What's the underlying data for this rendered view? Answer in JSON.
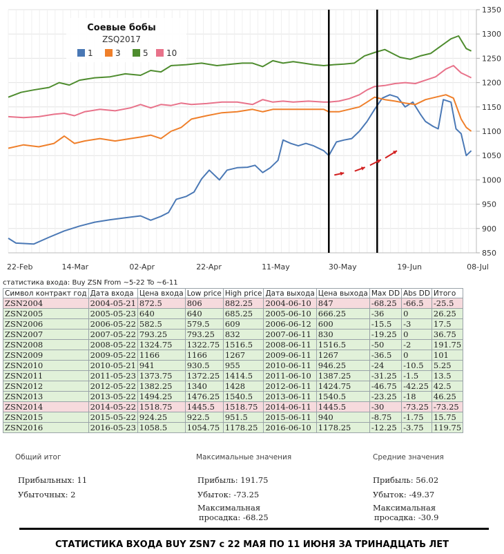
{
  "chart_data": {
    "type": "line",
    "title": "Соевые бобы",
    "subtitle": "ZSQ2017",
    "ylim": [
      850,
      1350
    ],
    "yticks": [
      850,
      900,
      950,
      1000,
      1050,
      1100,
      1150,
      1200,
      1250,
      1300,
      1350
    ],
    "xticks": [
      "22-Feb",
      "14-Mar",
      "02-Apr",
      "22-Apr",
      "11-May",
      "30-May",
      "19-Jun",
      "08-Jul"
    ],
    "legend_position": "top-left",
    "grid": true,
    "series": [
      {
        "name": "1",
        "color": "#4a78b5",
        "values": [
          [
            0,
            880
          ],
          [
            3,
            870
          ],
          [
            10,
            868
          ],
          [
            16,
            882
          ],
          [
            22,
            895
          ],
          [
            28,
            905
          ],
          [
            34,
            913
          ],
          [
            40,
            918
          ],
          [
            46,
            922
          ],
          [
            52,
            926
          ],
          [
            56,
            917
          ],
          [
            60,
            925
          ],
          [
            63,
            933
          ],
          [
            66,
            960
          ],
          [
            70,
            966
          ],
          [
            73,
            975
          ],
          [
            76,
            1002
          ],
          [
            79,
            1020
          ],
          [
            83,
            1000
          ],
          [
            86,
            1020
          ],
          [
            90,
            1025
          ],
          [
            94,
            1026
          ],
          [
            97,
            1030
          ],
          [
            100,
            1015
          ],
          [
            103,
            1025
          ],
          [
            106,
            1040
          ],
          [
            108,
            1082
          ],
          [
            111,
            1075
          ],
          [
            114,
            1070
          ],
          [
            117,
            1075
          ],
          [
            120,
            1070
          ],
          [
            124,
            1060
          ],
          [
            126,
            1050
          ],
          [
            129,
            1078
          ],
          [
            132,
            1082
          ],
          [
            135,
            1085
          ],
          [
            138,
            1100
          ],
          [
            141,
            1120
          ],
          [
            144,
            1145
          ],
          [
            147,
            1168
          ],
          [
            150,
            1175
          ],
          [
            153,
            1170
          ],
          [
            156,
            1150
          ],
          [
            159,
            1160
          ],
          [
            162,
            1135
          ],
          [
            164,
            1120
          ],
          [
            167,
            1110
          ],
          [
            169,
            1105
          ],
          [
            171,
            1165
          ],
          [
            174,
            1160
          ],
          [
            176,
            1105
          ],
          [
            178,
            1095
          ],
          [
            180,
            1050
          ],
          [
            182,
            1060
          ]
        ]
      },
      {
        "name": "3",
        "color": "#ef7f2a",
        "values": [
          [
            0,
            1065
          ],
          [
            6,
            1072
          ],
          [
            12,
            1068
          ],
          [
            18,
            1075
          ],
          [
            22,
            1090
          ],
          [
            26,
            1075
          ],
          [
            30,
            1080
          ],
          [
            36,
            1085
          ],
          [
            42,
            1080
          ],
          [
            48,
            1085
          ],
          [
            52,
            1088
          ],
          [
            56,
            1092
          ],
          [
            60,
            1085
          ],
          [
            64,
            1100
          ],
          [
            68,
            1108
          ],
          [
            72,
            1125
          ],
          [
            78,
            1132
          ],
          [
            84,
            1138
          ],
          [
            90,
            1140
          ],
          [
            96,
            1145
          ],
          [
            100,
            1140
          ],
          [
            104,
            1145
          ],
          [
            108,
            1145
          ],
          [
            112,
            1145
          ],
          [
            118,
            1145
          ],
          [
            124,
            1145
          ],
          [
            126,
            1140
          ],
          [
            130,
            1140
          ],
          [
            134,
            1145
          ],
          [
            138,
            1150
          ],
          [
            141,
            1160
          ],
          [
            144,
            1170
          ],
          [
            148,
            1165
          ],
          [
            152,
            1162
          ],
          [
            156,
            1158
          ],
          [
            160,
            1155
          ],
          [
            164,
            1165
          ],
          [
            168,
            1170
          ],
          [
            172,
            1175
          ],
          [
            175,
            1168
          ],
          [
            178,
            1125
          ],
          [
            180,
            1108
          ],
          [
            182,
            1100
          ]
        ]
      },
      {
        "name": "5",
        "color": "#4e8c2e",
        "values": [
          [
            0,
            1170
          ],
          [
            5,
            1180
          ],
          [
            10,
            1185
          ],
          [
            16,
            1190
          ],
          [
            20,
            1200
          ],
          [
            24,
            1195
          ],
          [
            28,
            1205
          ],
          [
            34,
            1210
          ],
          [
            40,
            1212
          ],
          [
            46,
            1218
          ],
          [
            52,
            1215
          ],
          [
            56,
            1225
          ],
          [
            60,
            1222
          ],
          [
            64,
            1235
          ],
          [
            70,
            1237
          ],
          [
            76,
            1240
          ],
          [
            82,
            1235
          ],
          [
            88,
            1238
          ],
          [
            92,
            1240
          ],
          [
            96,
            1240
          ],
          [
            100,
            1233
          ],
          [
            104,
            1245
          ],
          [
            108,
            1240
          ],
          [
            112,
            1243
          ],
          [
            116,
            1240
          ],
          [
            120,
            1237
          ],
          [
            124,
            1235
          ],
          [
            128,
            1237
          ],
          [
            132,
            1238
          ],
          [
            136,
            1240
          ],
          [
            140,
            1255
          ],
          [
            144,
            1262
          ],
          [
            148,
            1268
          ],
          [
            151,
            1260
          ],
          [
            154,
            1252
          ],
          [
            158,
            1248
          ],
          [
            162,
            1255
          ],
          [
            166,
            1260
          ],
          [
            170,
            1275
          ],
          [
            174,
            1290
          ],
          [
            177,
            1296
          ],
          [
            180,
            1270
          ],
          [
            182,
            1265
          ]
        ]
      },
      {
        "name": "10",
        "color": "#e8728a",
        "values": [
          [
            0,
            1130
          ],
          [
            6,
            1128
          ],
          [
            12,
            1130
          ],
          [
            18,
            1135
          ],
          [
            22,
            1137
          ],
          [
            26,
            1132
          ],
          [
            30,
            1140
          ],
          [
            36,
            1145
          ],
          [
            42,
            1142
          ],
          [
            48,
            1148
          ],
          [
            52,
            1155
          ],
          [
            56,
            1148
          ],
          [
            60,
            1155
          ],
          [
            64,
            1153
          ],
          [
            68,
            1158
          ],
          [
            72,
            1155
          ],
          [
            78,
            1157
          ],
          [
            84,
            1160
          ],
          [
            90,
            1160
          ],
          [
            96,
            1155
          ],
          [
            100,
            1165
          ],
          [
            104,
            1160
          ],
          [
            108,
            1162
          ],
          [
            112,
            1160
          ],
          [
            118,
            1162
          ],
          [
            124,
            1160
          ],
          [
            126,
            1160
          ],
          [
            130,
            1162
          ],
          [
            134,
            1167
          ],
          [
            138,
            1175
          ],
          [
            141,
            1185
          ],
          [
            144,
            1192
          ],
          [
            148,
            1194
          ],
          [
            152,
            1198
          ],
          [
            156,
            1200
          ],
          [
            160,
            1198
          ],
          [
            164,
            1205
          ],
          [
            168,
            1212
          ],
          [
            172,
            1228
          ],
          [
            175,
            1235
          ],
          [
            178,
            1220
          ],
          [
            180,
            1215
          ],
          [
            182,
            1210
          ]
        ]
      }
    ],
    "vertical_markers": [
      126,
      145
    ],
    "arrows": [
      [
        126,
        1010
      ],
      [
        134,
        1018
      ],
      [
        140,
        1030
      ],
      [
        146,
        1045
      ]
    ]
  },
  "table": {
    "caption": "статистика входа: Buy ZSN From ~5-22 To ~6-11",
    "headers": [
      "Символ контракт год",
      "Дата входа",
      "Цена входа",
      "Low price",
      "High price",
      "Дата выхода",
      "Цена выхода",
      "Max DD",
      "Abs DD",
      "Итого"
    ],
    "rows": [
      {
        "result": "loss",
        "cells": [
          "ZSN2004",
          "2004-05-21",
          "872.5",
          "806",
          "882.25",
          "2004-06-10",
          "847",
          "-68.25",
          "-66.5",
          "-25.5"
        ]
      },
      {
        "result": "win",
        "cells": [
          "ZSN2005",
          "2005-05-23",
          "640",
          "640",
          "685.25",
          "2005-06-10",
          "666.25",
          "-36",
          "0",
          "26.25"
        ]
      },
      {
        "result": "win",
        "cells": [
          "ZSN2006",
          "2006-05-22",
          "582.5",
          "579.5",
          "609",
          "2006-06-12",
          "600",
          "-15.5",
          "-3",
          "17.5"
        ]
      },
      {
        "result": "win",
        "cells": [
          "ZSN2007",
          "2007-05-22",
          "793.25",
          "793.25",
          "832",
          "2007-06-11",
          "830",
          "-19.25",
          "0",
          "36.75"
        ]
      },
      {
        "result": "win",
        "cells": [
          "ZSN2008",
          "2008-05-22",
          "1324.75",
          "1322.75",
          "1516.5",
          "2008-06-11",
          "1516.5",
          "-50",
          "-2",
          "191.75"
        ]
      },
      {
        "result": "win",
        "cells": [
          "ZSN2009",
          "2009-05-22",
          "1166",
          "1166",
          "1267",
          "2009-06-11",
          "1267",
          "-36.5",
          "0",
          "101"
        ]
      },
      {
        "result": "win",
        "cells": [
          "ZSN2010",
          "2010-05-21",
          "941",
          "930.5",
          "955",
          "2010-06-11",
          "946.25",
          "-24",
          "-10.5",
          "5.25"
        ]
      },
      {
        "result": "win",
        "cells": [
          "ZSN2011",
          "2011-05-23",
          "1373.75",
          "1372.25",
          "1414.5",
          "2011-06-10",
          "1387.25",
          "-31.25",
          "-1.5",
          "13.5"
        ]
      },
      {
        "result": "win",
        "cells": [
          "ZSN2012",
          "2012-05-22",
          "1382.25",
          "1340",
          "1428",
          "2012-06-11",
          "1424.75",
          "-46.75",
          "-42.25",
          "42.5"
        ]
      },
      {
        "result": "win",
        "cells": [
          "ZSN2013",
          "2013-05-22",
          "1494.25",
          "1476.25",
          "1540.5",
          "2013-06-11",
          "1540.5",
          "-23.25",
          "-18",
          "46.25"
        ]
      },
      {
        "result": "loss",
        "cells": [
          "ZSN2014",
          "2014-05-22",
          "1518.75",
          "1445.5",
          "1518.75",
          "2014-06-11",
          "1445.5",
          "-30",
          "-73.25",
          "-73.25"
        ]
      },
      {
        "result": "win",
        "cells": [
          "ZSN2015",
          "2015-05-22",
          "924.25",
          "922.5",
          "951.5",
          "2015-06-11",
          "940",
          "-8.75",
          "-1.75",
          "15.75"
        ]
      },
      {
        "result": "win",
        "cells": [
          "ZSN2016",
          "2016-05-23",
          "1058.5",
          "1054.75",
          "1178.25",
          "2016-06-10",
          "1178.25",
          "-12.25",
          "-3.75",
          "119.75"
        ]
      }
    ]
  },
  "summary": {
    "total": {
      "title": "Общий итог",
      "line1": "Прибыльных: 11",
      "line2": "Убыточных: 2"
    },
    "max": {
      "title": "Максимальные значения",
      "line1": "Прибыль: 191.75",
      "line2": "Убыток: -73.25",
      "line3": "Максимальная",
      "line4": "просадка: -68.25"
    },
    "avg": {
      "title": "Средние значения",
      "line1": "Прибыль: 56.02",
      "line2": "Убыток: -49.37",
      "line3": "Максимальная",
      "line4": "просадка: -30.9"
    }
  },
  "footer": {
    "title": "СТАТИСТИКА ВХОДА BUY  ZSN7   с 22  МАЯ  ПО 11 ИЮНЯ ЗА  ТРИНАДЦАТЬ ЛЕТ"
  }
}
